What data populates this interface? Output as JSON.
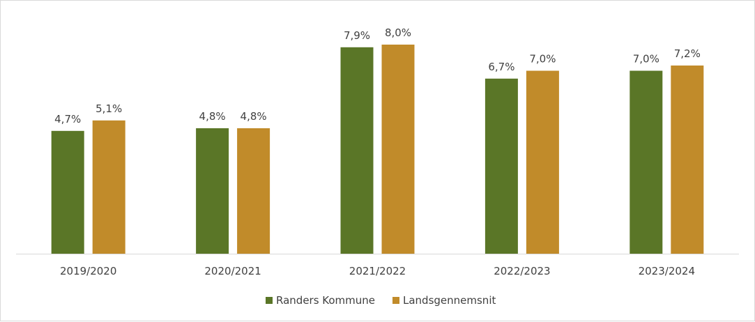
{
  "chart_data": {
    "type": "bar",
    "title": "",
    "xlabel": "",
    "ylabel": "",
    "categories": [
      "2019/2020",
      "2020/2021",
      "2021/2022",
      "2022/2023",
      "2023/2024"
    ],
    "series": [
      {
        "name": "Randers Kommune",
        "color": "#5a7627",
        "values": [
          4.7,
          4.8,
          7.9,
          6.7,
          7.0
        ],
        "labels": [
          "4,7%",
          "4,8%",
          "7,9%",
          "6,7%",
          "7,0%"
        ]
      },
      {
        "name": "Landsgennemsnit",
        "color": "#c18b2a",
        "values": [
          5.1,
          4.8,
          8.0,
          7.0,
          7.2
        ],
        "labels": [
          "5,1%",
          "4,8%",
          "8,0%",
          "7,0%",
          "7,2%"
        ]
      }
    ],
    "ylim": [
      0,
      8
    ],
    "grid": false,
    "legend": "bottom",
    "value_unit": "%"
  }
}
